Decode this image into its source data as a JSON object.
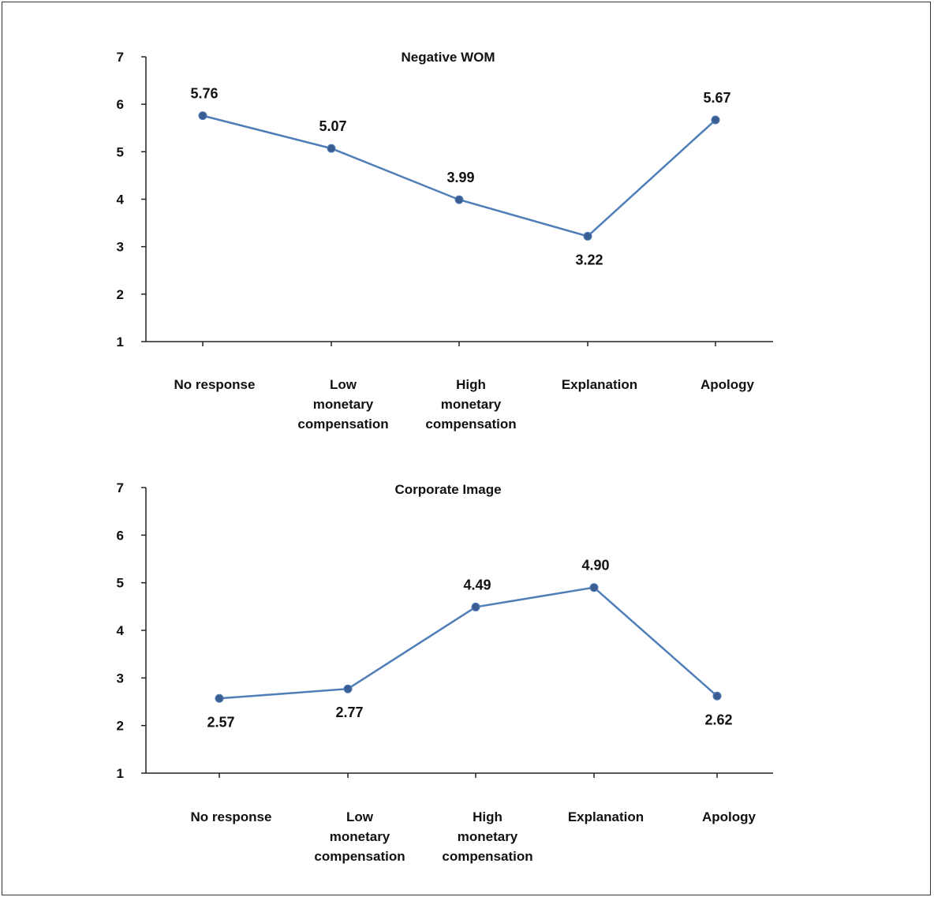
{
  "chart_data": [
    {
      "type": "line",
      "title": "Negative WOM",
      "categories": [
        "No response",
        "Low monetary compensation",
        "High monetary compensation",
        "Explanation",
        "Apology"
      ],
      "category_lines": [
        [
          "No response"
        ],
        [
          "Low",
          "monetary",
          "compensation"
        ],
        [
          "High",
          "monetary",
          "compensation"
        ],
        [
          "Explanation"
        ],
        [
          "Apology"
        ]
      ],
      "series": [
        {
          "values": [
            5.76,
            5.07,
            3.99,
            3.22,
            5.67
          ],
          "labels": [
            "5.76",
            "5.07",
            "3.99",
            "3.22",
            "5.67"
          ],
          "label_pos": [
            "above",
            "above",
            "above",
            "below",
            "above"
          ]
        }
      ],
      "yticks": [
        "1",
        "2",
        "3",
        "4",
        "5",
        "6",
        "7"
      ],
      "ylim": [
        1,
        7
      ],
      "grid": false,
      "legend": "none",
      "line_color": "#4F7DB8",
      "marker_color": "#3B5E92"
    },
    {
      "type": "line",
      "title": "Corporate Image",
      "categories": [
        "No response",
        "Low monetary compensation",
        "High monetary compensation",
        "Explanation",
        "Apology"
      ],
      "category_lines": [
        [
          "No response"
        ],
        [
          "Low",
          "monetary",
          "compensation"
        ],
        [
          "High",
          "monetary",
          "compensation"
        ],
        [
          "Explanation"
        ],
        [
          "Apology"
        ]
      ],
      "series": [
        {
          "values": [
            2.57,
            2.77,
            4.49,
            4.9,
            2.62
          ],
          "labels": [
            "2.57",
            "2.77",
            "4.49",
            "4.90",
            "2.62"
          ],
          "label_pos": [
            "below",
            "below",
            "above",
            "above",
            "below"
          ]
        }
      ],
      "yticks": [
        "1",
        "2",
        "3",
        "4",
        "5",
        "6",
        "7"
      ],
      "ylim": [
        1,
        7
      ],
      "grid": false,
      "legend": "none",
      "line_color": "#4F7DB8",
      "marker_color": "#3B5E92"
    }
  ]
}
